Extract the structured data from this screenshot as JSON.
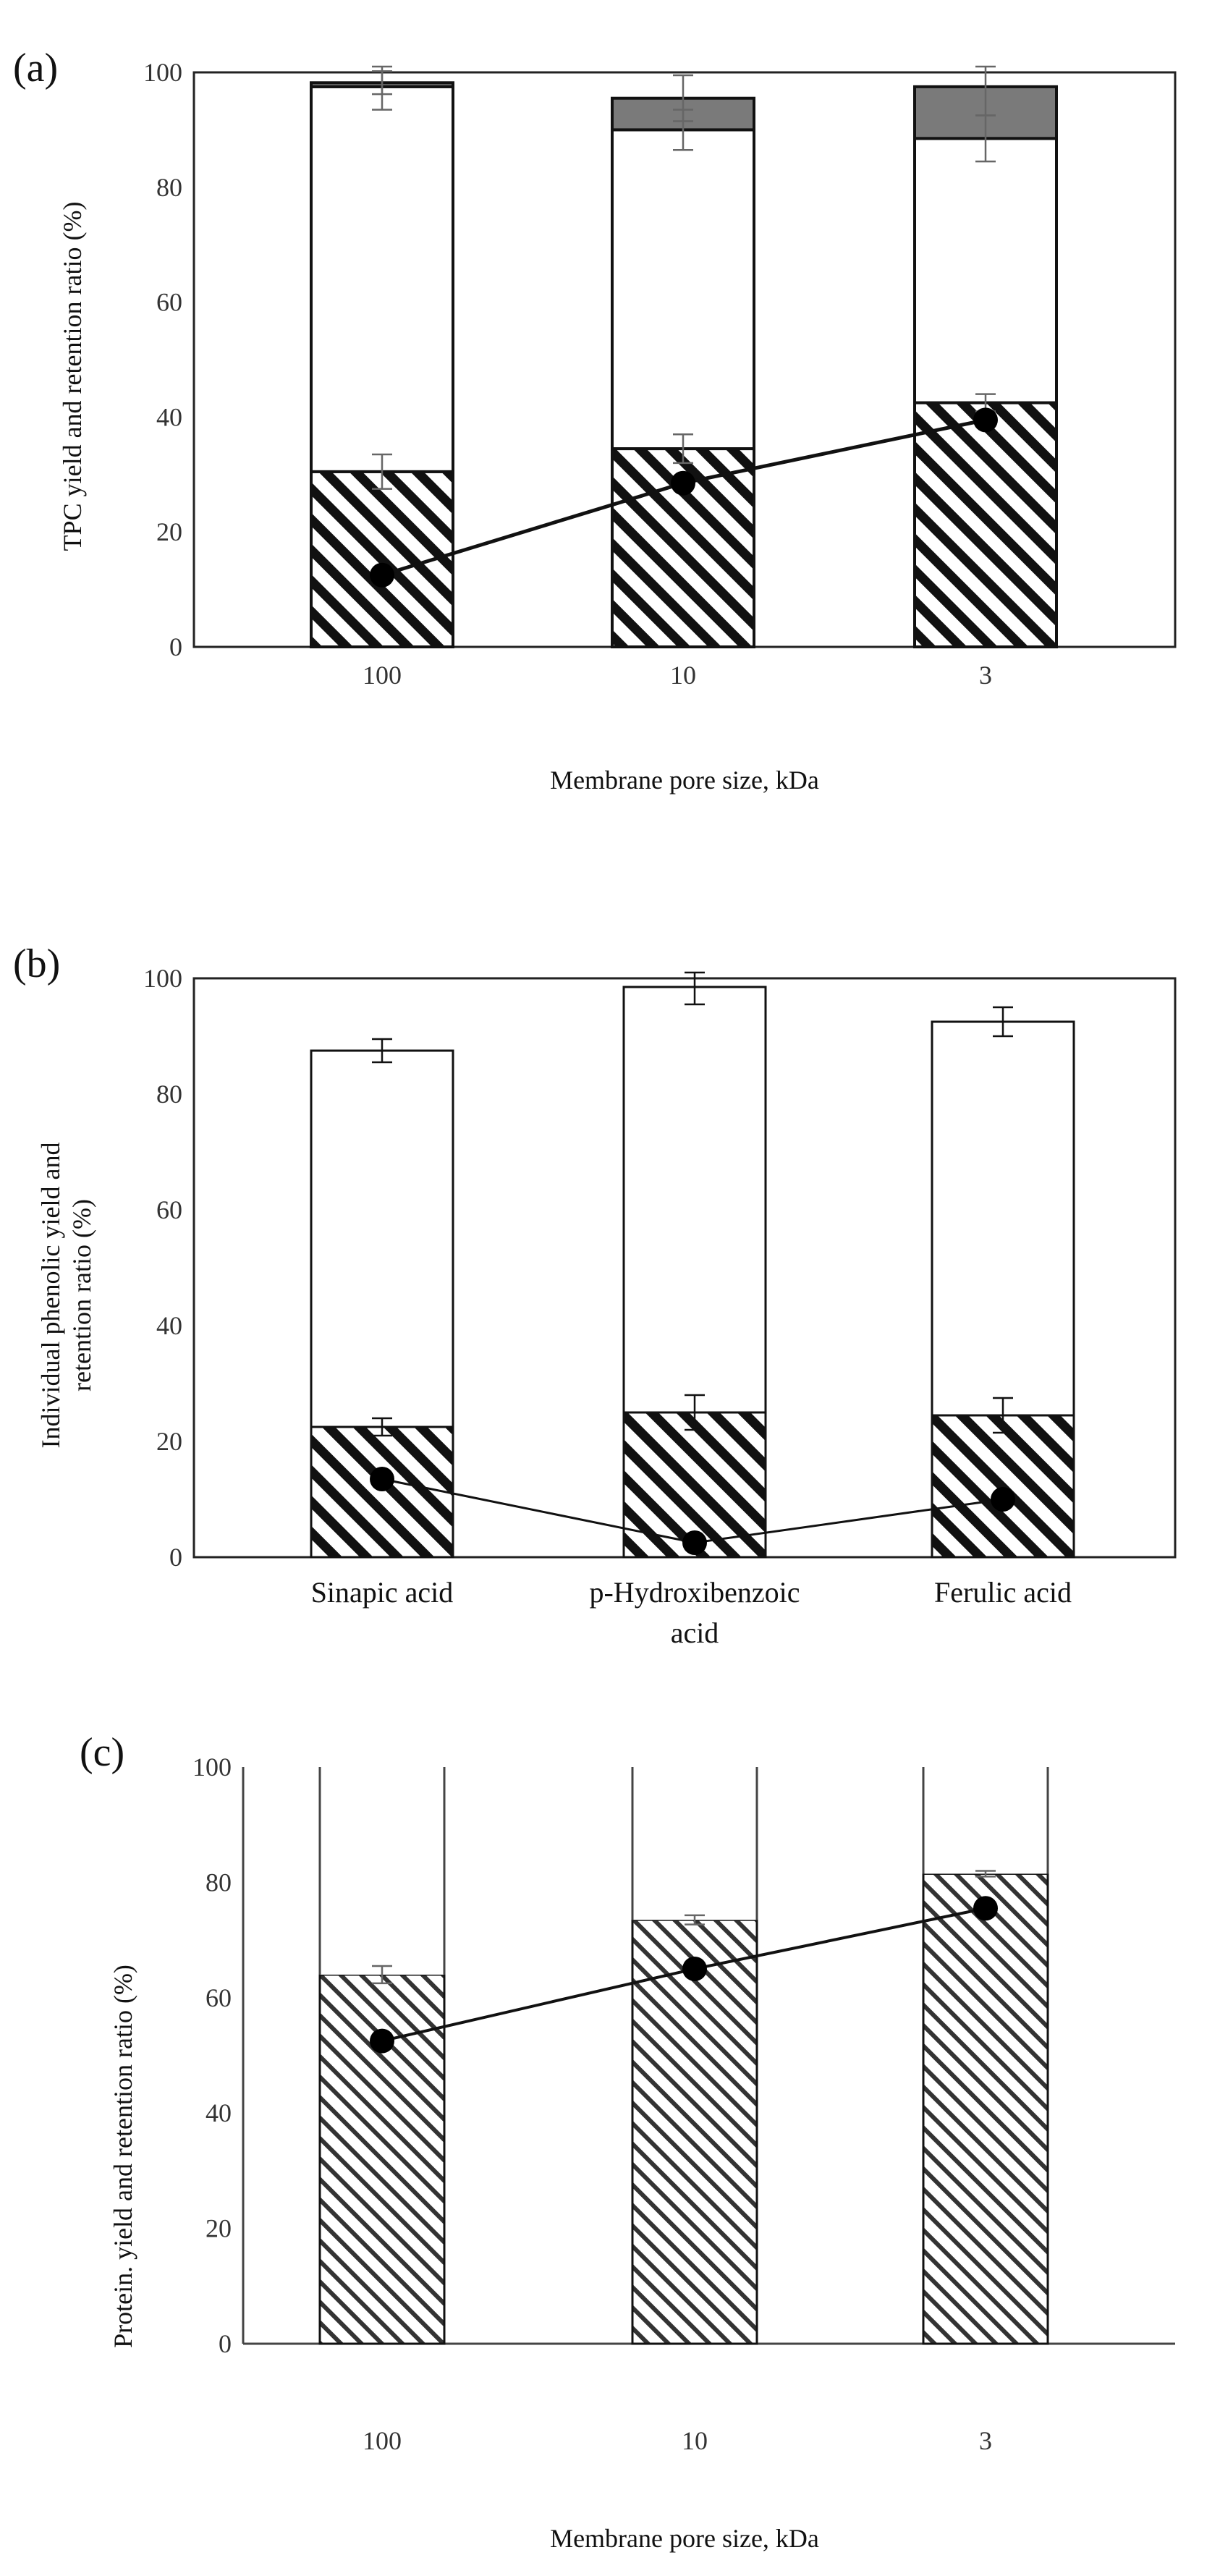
{
  "chart_data": [
    {
      "type": "bar",
      "label": "(a)",
      "title": "",
      "xlabel": "Membrane pore size, kDa",
      "ylabel": "TPC yield and retention ratio (%)",
      "ylim": [
        0,
        100
      ],
      "yticks": [
        "0",
        "20",
        "40",
        "60",
        "80",
        "100"
      ],
      "categories": [
        "100",
        "10",
        "3"
      ],
      "series": [
        {
          "name": "hatched",
          "style": "hatched",
          "values": [
            30.5,
            34.5,
            42.5
          ],
          "errors": [
            3.0,
            2.5,
            1.5
          ]
        },
        {
          "name": "white",
          "style": "white",
          "values": [
            67.0,
            55.5,
            46.0
          ],
          "errors": [
            4.0,
            3.5,
            4.0
          ]
        },
        {
          "name": "gray",
          "style": "gray",
          "values": [
            0.7,
            5.5,
            9.0
          ],
          "errors": [
            2.0,
            4.0,
            5.0
          ]
        }
      ],
      "line": {
        "name": "retention ratio",
        "values": [
          12.5,
          28.5,
          39.5
        ]
      }
    },
    {
      "type": "bar",
      "label": "(b)",
      "title": "",
      "xlabel": "",
      "ylabel": "Individual phenolic yield and retention ratio (%)",
      "ylabel_lines": [
        "Individual phenolic yield and",
        "retention ratio (%)"
      ],
      "ylim": [
        0,
        100
      ],
      "yticks": [
        "0",
        "20",
        "40",
        "60",
        "80",
        "100"
      ],
      "categories": [
        "Sinapic acid",
        "p-Hydroxibenzoic acid",
        "Ferulic acid"
      ],
      "category_lines": [
        [
          "Sinapic acid"
        ],
        [
          "p-Hydroxibenzoic",
          "acid"
        ],
        [
          "Ferulic acid"
        ]
      ],
      "series": [
        {
          "name": "hatched",
          "style": "hatched",
          "values": [
            22.5,
            25.0,
            24.5
          ],
          "errors": [
            1.5,
            3.0,
            3.0
          ]
        },
        {
          "name": "white",
          "style": "white",
          "values": [
            65.0,
            73.5,
            68.0
          ],
          "errors": [
            2.0,
            3.0,
            2.5
          ]
        }
      ],
      "line": {
        "name": "retention ratio",
        "values": [
          13.5,
          2.5,
          10.0
        ]
      }
    },
    {
      "type": "bar",
      "label": "(c)",
      "title": "",
      "xlabel": "Membrane pore size, kDa",
      "ylabel": "Protein. yield and retention ratio (%)",
      "ylim": [
        0,
        100
      ],
      "yticks": [
        "0",
        "20",
        "40",
        "60",
        "80",
        "100"
      ],
      "categories": [
        "100",
        "10",
        "3"
      ],
      "series": [
        {
          "name": "hatched",
          "style": "hatched-thin",
          "values": [
            64.0,
            73.5,
            81.5
          ],
          "errors": [
            1.5,
            0.8,
            0.5
          ]
        },
        {
          "name": "white",
          "style": "white",
          "values": [
            36.0,
            26.5,
            18.5
          ],
          "errors": [
            0,
            0,
            0
          ]
        }
      ],
      "line": {
        "name": "retention ratio",
        "values": [
          52.5,
          65.0,
          75.5
        ]
      }
    }
  ]
}
